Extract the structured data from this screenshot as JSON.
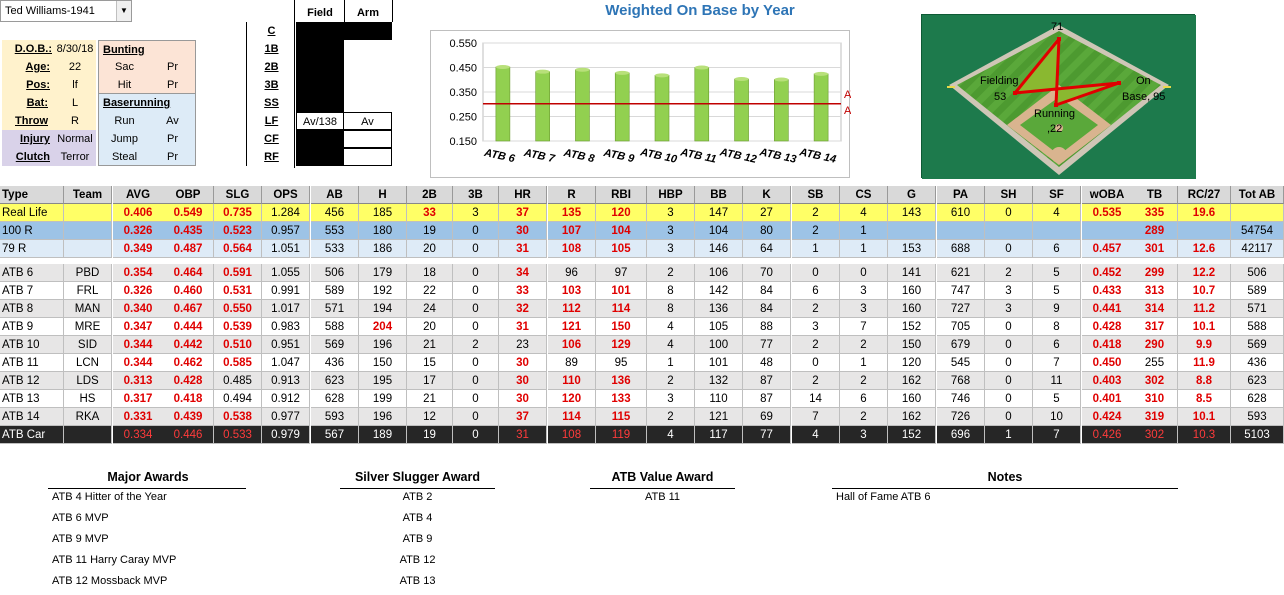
{
  "player": {
    "name": "Ted Williams-1941"
  },
  "info": {
    "dob_label": "D.O.B.:",
    "dob": "8/30/18",
    "age_label": "Age:",
    "age": "22",
    "pos_label": "Pos:",
    "pos": "lf",
    "bat_label": "Bat:",
    "bat": "L",
    "throw_label": "Throw",
    "throw": "R",
    "injury_label": "Injury",
    "injury": "Normal",
    "clutch_label": "Clutch",
    "clutch": "Terror"
  },
  "bunting": {
    "title": "Bunting",
    "sac_label": "Sac",
    "sac": "Pr",
    "hit_label": "Hit",
    "hit": "Pr"
  },
  "baserunning": {
    "title": "Baserunning",
    "run_label": "Run",
    "run": "Av",
    "jump_label": "Jump",
    "jump": "Pr",
    "steal_label": "Steal",
    "steal": "Pr"
  },
  "positions": {
    "field_header": "Field",
    "arm_header": "Arm",
    "labels": [
      "C",
      "1B",
      "2B",
      "3B",
      "SS",
      "LF",
      "CF",
      "RF"
    ],
    "lf_field": "Av/138",
    "lf_arm": "Av"
  },
  "chart_data": {
    "type": "bar",
    "title": "Weighted On Base by Year",
    "categories": [
      "ATB 6",
      "ATB 7",
      "ATB 8",
      "ATB 9",
      "ATB 10",
      "ATB 11",
      "ATB 12",
      "ATB 13",
      "ATB 14"
    ],
    "values": [
      0.452,
      0.433,
      0.441,
      0.428,
      0.418,
      0.45,
      0.403,
      0.401,
      0.424
    ],
    "reference_line": {
      "label_top": "ATB",
      "label_bottom": "Avg",
      "value": 0.302
    },
    "yticks": [
      "0.550",
      "0.450",
      "0.350",
      "0.250",
      "0.150"
    ],
    "ylim": [
      0.15,
      0.55
    ],
    "colors": {
      "bar": "#92d050",
      "line": "#c00000"
    }
  },
  "field_chart": {
    "top_value": "71",
    "fielding_label": "Fielding",
    "fielding_value": "53",
    "onbase_label": "On",
    "onbase_label2": "Base, 95",
    "running_label": "Running",
    "running_value": ",22"
  },
  "table": {
    "headers": [
      "Type",
      "Team",
      "AVG",
      "OBP",
      "SLG",
      "OPS",
      "AB",
      "H",
      "2B",
      "3B",
      "HR",
      "R",
      "RBI",
      "HBP",
      "BB",
      "K",
      "SB",
      "CS",
      "G",
      "PA",
      "SH",
      "SF",
      "wOBA",
      "TB",
      "RC/27",
      "Tot AB"
    ],
    "rows": [
      {
        "cls": "r-real",
        "cells": [
          "Real Life",
          "",
          "0.406",
          "0.549",
          "0.735",
          "1.284",
          "456",
          "185",
          "33",
          "3",
          "37",
          "135",
          "120",
          "3",
          "147",
          "27",
          "2",
          "4",
          "143",
          "610",
          "0",
          "4",
          "0.535",
          "335",
          "19.6",
          ""
        ],
        "red": [
          2,
          3,
          4,
          8,
          10,
          11,
          12,
          22,
          23,
          24
        ]
      },
      {
        "cls": "r-100",
        "cells": [
          "100 R",
          "",
          "0.326",
          "0.435",
          "0.523",
          "0.957",
          "553",
          "180",
          "19",
          "0",
          "30",
          "107",
          "104",
          "3",
          "104",
          "80",
          "2",
          "1",
          "",
          "",
          "",
          "",
          "",
          "289",
          "",
          "54754"
        ],
        "red": [
          2,
          3,
          4,
          10,
          11,
          12,
          23
        ]
      },
      {
        "cls": "r-79",
        "cells": [
          "79 R",
          "",
          "0.349",
          "0.487",
          "0.564",
          "1.051",
          "533",
          "186",
          "20",
          "0",
          "31",
          "108",
          "105",
          "3",
          "146",
          "64",
          "1",
          "1",
          "153",
          "688",
          "0",
          "6",
          "0.457",
          "301",
          "12.6",
          "42117"
        ],
        "red": [
          2,
          3,
          4,
          10,
          11,
          12,
          22,
          23,
          24
        ]
      },
      {
        "cls": "r-alt",
        "cells": [
          "ATB 6",
          "PBD",
          "0.354",
          "0.464",
          "0.591",
          "1.055",
          "506",
          "179",
          "18",
          "0",
          "34",
          "96",
          "97",
          "2",
          "106",
          "70",
          "0",
          "0",
          "141",
          "621",
          "2",
          "5",
          "0.452",
          "299",
          "12.2",
          "506"
        ],
        "red": [
          2,
          3,
          4,
          10,
          22,
          23,
          24
        ]
      },
      {
        "cls": "r-wht",
        "cells": [
          "ATB 7",
          "FRL",
          "0.326",
          "0.460",
          "0.531",
          "0.991",
          "589",
          "192",
          "22",
          "0",
          "33",
          "103",
          "101",
          "8",
          "142",
          "84",
          "6",
          "3",
          "160",
          "747",
          "3",
          "5",
          "0.433",
          "313",
          "10.7",
          "589"
        ],
        "red": [
          2,
          3,
          4,
          10,
          11,
          12,
          22,
          23,
          24
        ]
      },
      {
        "cls": "r-alt",
        "cells": [
          "ATB 8",
          "MAN",
          "0.340",
          "0.467",
          "0.550",
          "1.017",
          "571",
          "194",
          "24",
          "0",
          "32",
          "112",
          "114",
          "8",
          "136",
          "84",
          "2",
          "3",
          "160",
          "727",
          "3",
          "9",
          "0.441",
          "314",
          "11.2",
          "571"
        ],
        "red": [
          2,
          3,
          4,
          10,
          11,
          12,
          22,
          23,
          24
        ]
      },
      {
        "cls": "r-wht",
        "cells": [
          "ATB 9",
          "MRE",
          "0.347",
          "0.444",
          "0.539",
          "0.983",
          "588",
          "204",
          "20",
          "0",
          "31",
          "121",
          "150",
          "4",
          "105",
          "88",
          "3",
          "7",
          "152",
          "705",
          "0",
          "8",
          "0.428",
          "317",
          "10.1",
          "588"
        ],
        "red": [
          2,
          3,
          4,
          7,
          10,
          11,
          12,
          22,
          23,
          24
        ]
      },
      {
        "cls": "r-alt",
        "cells": [
          "ATB 10",
          "SID",
          "0.344",
          "0.442",
          "0.510",
          "0.951",
          "569",
          "196",
          "21",
          "2",
          "23",
          "106",
          "129",
          "4",
          "100",
          "77",
          "2",
          "2",
          "150",
          "679",
          "0",
          "6",
          "0.418",
          "290",
          "9.9",
          "569"
        ],
        "red": [
          2,
          3,
          4,
          11,
          12,
          22,
          23,
          24
        ]
      },
      {
        "cls": "r-wht",
        "cells": [
          "ATB 11",
          "LCN",
          "0.344",
          "0.462",
          "0.585",
          "1.047",
          "436",
          "150",
          "15",
          "0",
          "30",
          "89",
          "95",
          "1",
          "101",
          "48",
          "0",
          "1",
          "120",
          "545",
          "0",
          "7",
          "0.450",
          "255",
          "11.9",
          "436"
        ],
        "red": [
          2,
          3,
          4,
          10,
          22,
          24
        ]
      },
      {
        "cls": "r-alt",
        "cells": [
          "ATB 12",
          "LDS",
          "0.313",
          "0.428",
          "0.485",
          "0.913",
          "623",
          "195",
          "17",
          "0",
          "30",
          "110",
          "136",
          "2",
          "132",
          "87",
          "2",
          "2",
          "162",
          "768",
          "0",
          "11",
          "0.403",
          "302",
          "8.8",
          "623"
        ],
        "red": [
          2,
          3,
          10,
          11,
          12,
          22,
          23,
          24
        ]
      },
      {
        "cls": "r-wht",
        "cells": [
          "ATB 13",
          "HS",
          "0.317",
          "0.418",
          "0.494",
          "0.912",
          "628",
          "199",
          "21",
          "0",
          "30",
          "120",
          "133",
          "3",
          "110",
          "87",
          "14",
          "6",
          "160",
          "746",
          "0",
          "5",
          "0.401",
          "310",
          "8.5",
          "628"
        ],
        "red": [
          2,
          3,
          10,
          11,
          12,
          22,
          23,
          24
        ]
      },
      {
        "cls": "r-alt",
        "cells": [
          "ATB 14",
          "RKA",
          "0.331",
          "0.439",
          "0.538",
          "0.977",
          "593",
          "196",
          "12",
          "0",
          "37",
          "114",
          "115",
          "2",
          "121",
          "69",
          "7",
          "2",
          "162",
          "726",
          "0",
          "10",
          "0.424",
          "319",
          "10.1",
          "593"
        ],
        "red": [
          2,
          3,
          4,
          10,
          11,
          12,
          22,
          23,
          24
        ]
      },
      {
        "cls": "r-car",
        "cells": [
          "ATB Car",
          "",
          "0.334",
          "0.446",
          "0.533",
          "0.979",
          "567",
          "189",
          "19",
          "0",
          "31",
          "108",
          "119",
          "4",
          "117",
          "77",
          "4",
          "3",
          "152",
          "696",
          "1",
          "7",
          "0.426",
          "302",
          "10.3",
          "5103"
        ],
        "red": [
          2,
          3,
          4,
          10,
          11,
          12,
          22,
          23,
          24
        ]
      }
    ]
  },
  "awards": {
    "major_title": "Major Awards",
    "major": [
      "ATB 4 Hitter of the Year",
      "ATB 6 MVP",
      "ATB 9 MVP",
      "ATB 11 Harry Caray MVP",
      "ATB 12 Mossback MVP"
    ],
    "silver_title": "Silver Slugger Award",
    "silver": [
      "ATB 2",
      "ATB 4",
      "ATB 9",
      "ATB 12",
      "ATB 13"
    ],
    "value_title": "ATB Value Award",
    "value": [
      "ATB 11"
    ],
    "notes_title": "Notes",
    "notes": [
      "Hall of Fame ATB 6"
    ]
  }
}
